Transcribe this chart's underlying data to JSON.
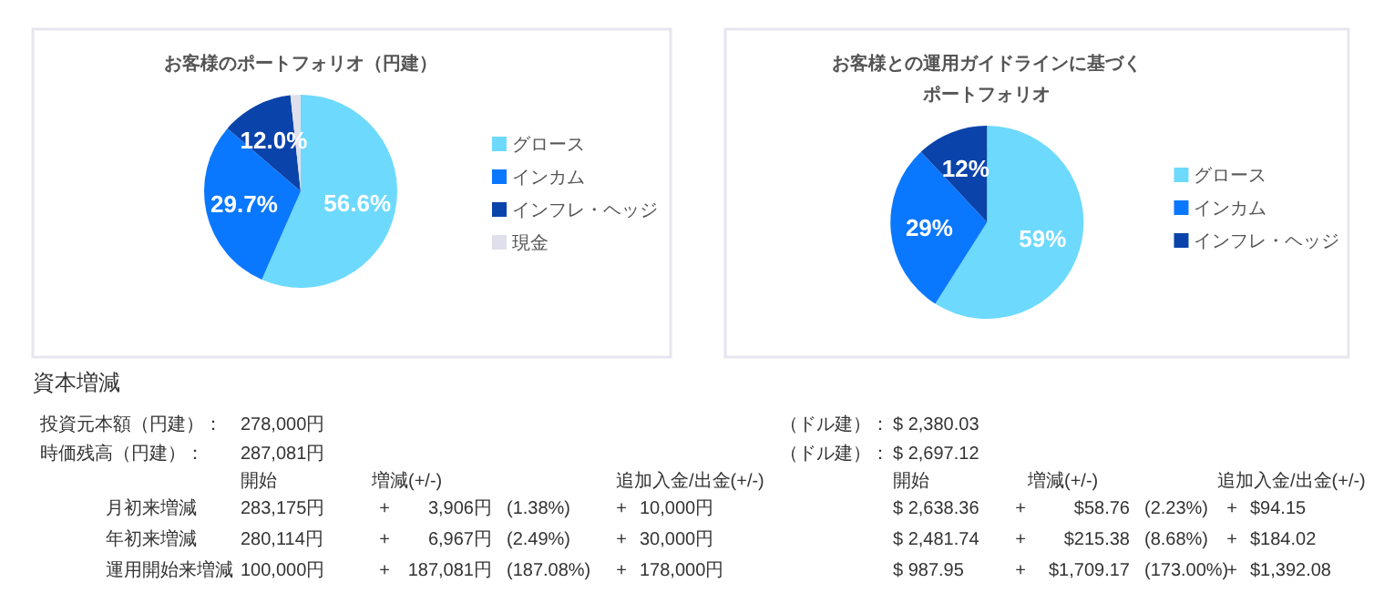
{
  "chart_data": [
    {
      "type": "pie",
      "title": "お客様のポートフォリオ（円建）",
      "categories": [
        "グロース",
        "インカム",
        "インフレ・ヘッジ",
        "現金"
      ],
      "values": [
        56.6,
        29.7,
        12.0,
        1.7
      ],
      "colors": [
        "#6dd9fd",
        "#0a78fe",
        "#0a43aa",
        "#e0e0ec"
      ],
      "value_labels": [
        "56.6%",
        "29.7%",
        "12.0%",
        null
      ],
      "legend": "right"
    },
    {
      "type": "pie",
      "title": "お客様との運用ガイドラインに基づくポートフォリオ",
      "categories": [
        "グロース",
        "インカム",
        "インフレ・ヘッジ"
      ],
      "values": [
        59,
        29,
        12
      ],
      "colors": [
        "#6dd9fd",
        "#0a78fe",
        "#0a43aa"
      ],
      "value_labels": [
        "59%",
        "29%",
        "12%"
      ],
      "legend": "right"
    },
    {
      "type": "other",
      "title": "資本増減",
      "annotations": [
        "投資元本額（円建）：",
        "278,000円",
        "（ドル建）：",
        "$ 2,380.03",
        "時価残高（円建）：",
        "287,081円",
        "（ドル建）：",
        "$ 2,697.12",
        "開始",
        "増減(+/-)",
        "追加入金/出金(+/-)",
        "開始",
        "増減(+/-)",
        "追加入金/出金(+/-)",
        "月初来増減",
        "283,175円",
        "+",
        "3,906円",
        "(1.38%)",
        "+",
        "10,000円",
        "$ 2,638.36",
        "+",
        "$58.76",
        "(2.23%)",
        "+",
        "$94.15",
        "年初来増減",
        "280,114円",
        "+",
        "6,967円",
        "(2.49%)",
        "+",
        "30,000円",
        "$ 2,481.74",
        "+",
        "$215.38",
        "(8.68%)",
        "+",
        "$184.02",
        "運用開始来増減",
        "100,000円",
        "+",
        "187,081円",
        "(187.08%)",
        "+",
        "178,000円",
        "$ 987.95",
        "+",
        "$1,709.17",
        "(173.00%)",
        "+",
        "$1,392.08"
      ]
    }
  ]
}
